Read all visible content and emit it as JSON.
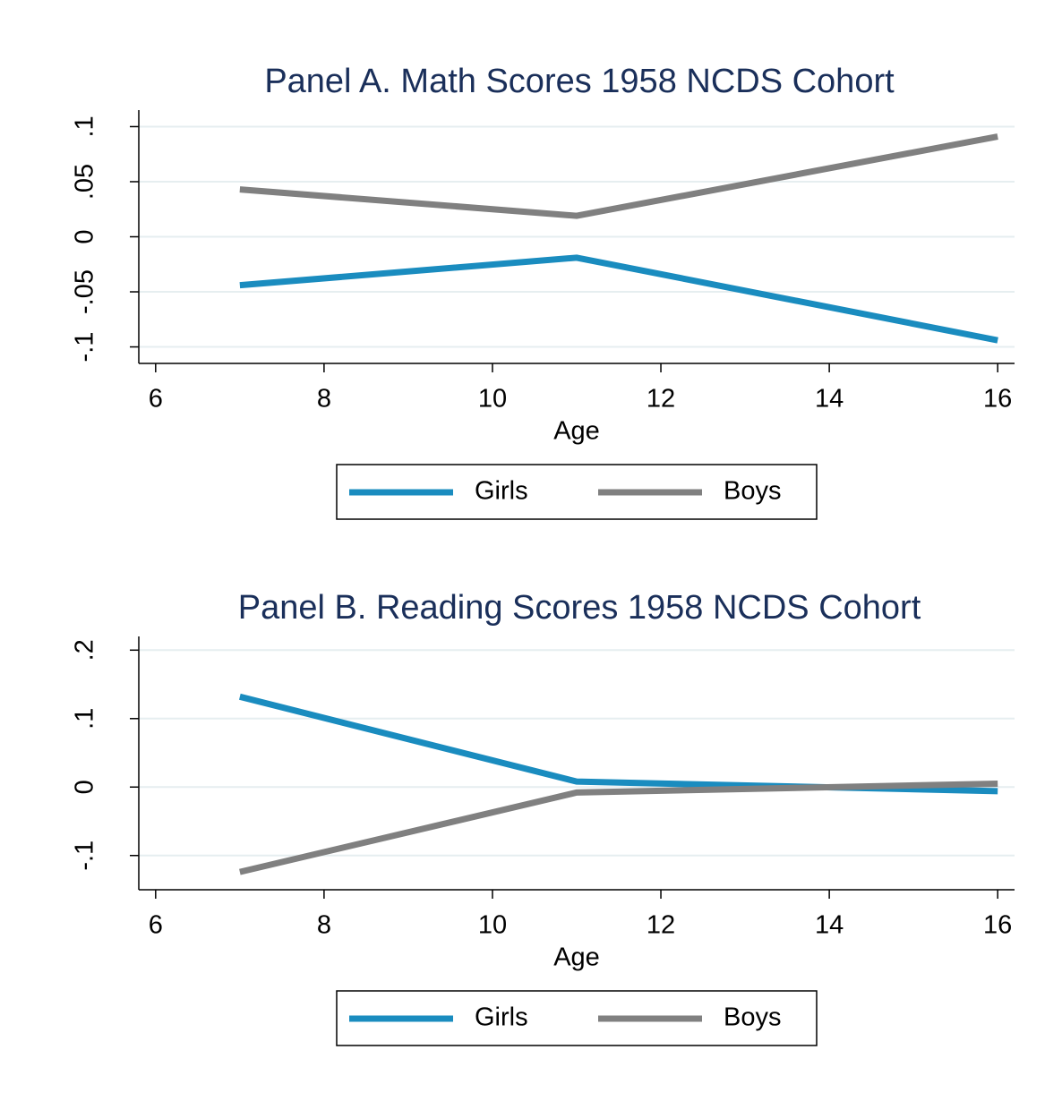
{
  "chart_data": [
    {
      "type": "line",
      "title": "Panel A. Math Scores 1958 NCDS Cohort",
      "x_label": "Age",
      "x": [
        7,
        11,
        16
      ],
      "series": [
        {
          "name": "Girls",
          "color": "#1a8cbf",
          "values": [
            -0.044,
            -0.019,
            -0.094
          ]
        },
        {
          "name": "Boys",
          "color": "#808080",
          "values": [
            0.043,
            0.019,
            0.091
          ]
        }
      ],
      "xlim": [
        5.8,
        16.2
      ],
      "xticks": [
        6,
        8,
        10,
        12,
        14,
        16
      ],
      "ylim": [
        -0.115,
        0.115
      ],
      "yticks": [
        {
          "value": -0.1,
          "label": "-.1"
        },
        {
          "value": -0.05,
          "label": "-.05"
        },
        0,
        {
          "value": 0.05,
          "label": ".05"
        },
        {
          "value": 0.1,
          "label": ".1"
        }
      ],
      "grid": true
    },
    {
      "type": "line",
      "title": "Panel B. Reading Scores 1958 NCDS Cohort",
      "x_label": "Age",
      "x": [
        7,
        11,
        16
      ],
      "series": [
        {
          "name": "Girls",
          "color": "#1a8cbf",
          "values": [
            0.132,
            0.008,
            -0.006
          ]
        },
        {
          "name": "Boys",
          "color": "#808080",
          "values": [
            -0.124,
            -0.008,
            0.005
          ]
        }
      ],
      "xlim": [
        5.8,
        16.2
      ],
      "xticks": [
        6,
        8,
        10,
        12,
        14,
        16
      ],
      "ylim": [
        -0.15,
        0.22
      ],
      "yticks": [
        {
          "value": -0.1,
          "label": "-.1"
        },
        0,
        {
          "value": 0.1,
          "label": ".1"
        },
        {
          "value": 0.2,
          "label": ".2"
        }
      ],
      "grid": true
    }
  ]
}
